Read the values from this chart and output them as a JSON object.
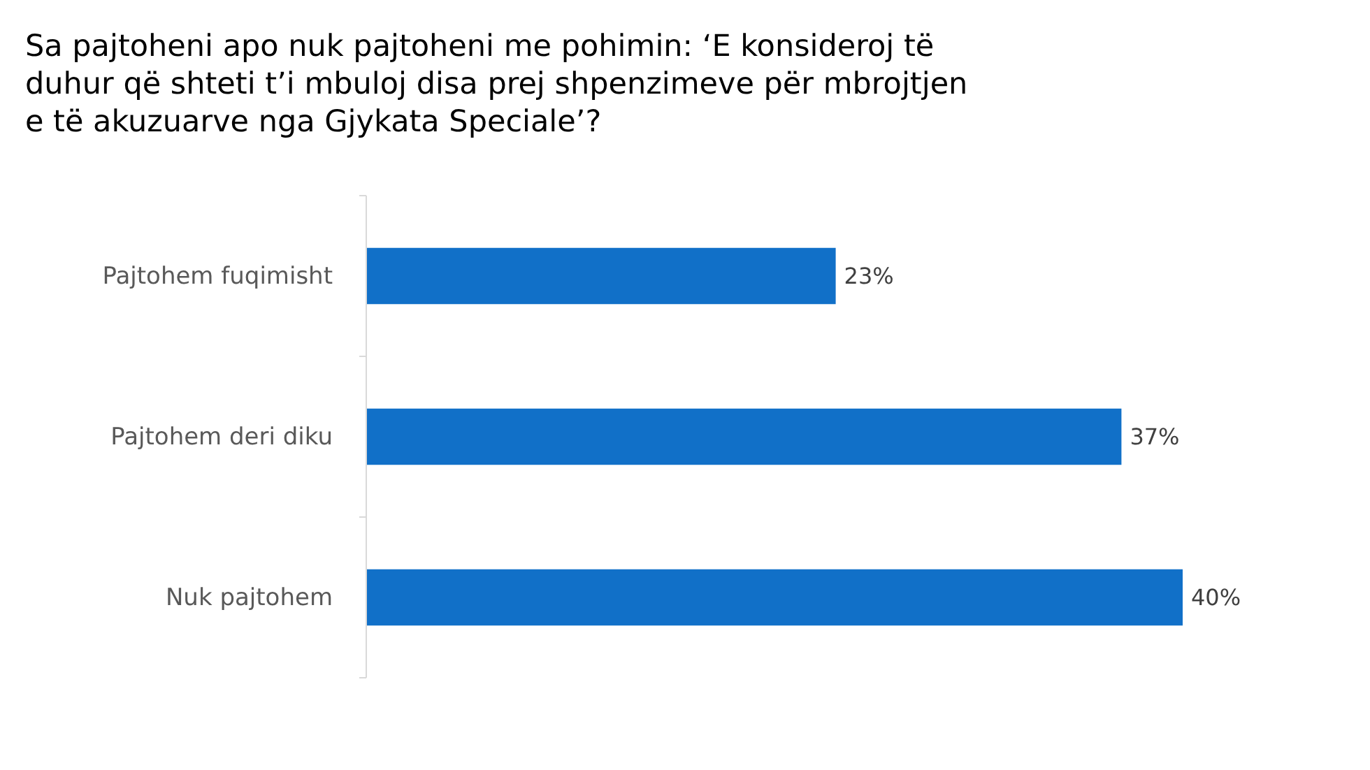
{
  "chart_data": {
    "type": "bar",
    "orientation": "horizontal",
    "title": "Sa pajtoheni apo nuk pajtoheni me pohimin: ‘E konsideroj të duhur që shteti t’i mbuloj disa prej shpenzimeve për mbrojtjen e të akuzuarve nga Gjykata Speciale’?",
    "categories": [
      "Pajtohem fuqimisht",
      "Pajtohem deri diku",
      "Nuk pajtohem"
    ],
    "values": [
      23,
      37,
      40
    ],
    "color": "#1170c8",
    "value_labels": [
      "23%",
      "37%",
      "40%"
    ]
  }
}
